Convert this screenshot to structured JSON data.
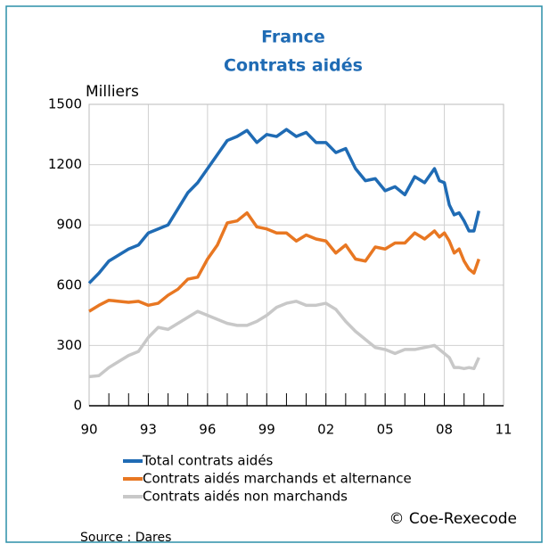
{
  "chart_data": {
    "type": "line",
    "title": "France",
    "subtitle": "Contrats aidés",
    "y_label": "Milliers",
    "source": "Source : Dares",
    "credit": "© Coe-Rexecode",
    "x": [
      1990,
      1990.5,
      1991,
      1991.5,
      1992,
      1992.5,
      1993,
      1993.5,
      1994,
      1994.5,
      1995,
      1995.5,
      1996,
      1996.5,
      1997,
      1997.5,
      1998,
      1998.5,
      1999,
      1999.5,
      2000,
      2000.5,
      2001,
      2001.5,
      2002,
      2002.5,
      2003,
      2003.5,
      2004,
      2004.5,
      2005,
      2005.5,
      2006,
      2006.5,
      2007,
      2007.5,
      2007.75,
      2008,
      2008.25,
      2008.5,
      2008.75,
      2009,
      2009.25,
      2009.5,
      2009.75
    ],
    "series": [
      {
        "name": "Total contrats aidés",
        "color": "#1f6bb4",
        "values": [
          610,
          660,
          720,
          750,
          780,
          800,
          860,
          880,
          900,
          980,
          1060,
          1110,
          1180,
          1250,
          1320,
          1340,
          1370,
          1310,
          1350,
          1340,
          1375,
          1340,
          1360,
          1310,
          1310,
          1260,
          1280,
          1180,
          1120,
          1130,
          1070,
          1090,
          1050,
          1140,
          1110,
          1180,
          1120,
          1110,
          1000,
          950,
          960,
          920,
          870,
          870,
          970
        ]
      },
      {
        "name": "Contrats aidés marchands et alternance",
        "color": "#e87722",
        "values": [
          470,
          500,
          525,
          520,
          515,
          520,
          500,
          510,
          550,
          580,
          630,
          640,
          730,
          800,
          910,
          920,
          960,
          890,
          880,
          860,
          860,
          820,
          850,
          830,
          820,
          760,
          800,
          730,
          720,
          790,
          780,
          810,
          810,
          860,
          830,
          870,
          840,
          860,
          820,
          760,
          780,
          720,
          680,
          660,
          730
        ]
      },
      {
        "name": "Contrats aidés non marchands",
        "color": "#c8c8c8",
        "values": [
          145,
          150,
          190,
          220,
          250,
          270,
          340,
          390,
          380,
          410,
          440,
          470,
          450,
          430,
          410,
          400,
          400,
          420,
          450,
          490,
          510,
          520,
          500,
          500,
          510,
          480,
          420,
          370,
          330,
          290,
          280,
          260,
          280,
          280,
          290,
          300,
          280,
          260,
          240,
          190,
          190,
          185,
          190,
          185,
          240
        ]
      }
    ],
    "xlim": [
      1990,
      2011
    ],
    "xticks": [
      {
        "value": 1990,
        "label": "90"
      },
      {
        "value": 1993,
        "label": "93"
      },
      {
        "value": 1996,
        "label": "96"
      },
      {
        "value": 1999,
        "label": "99"
      },
      {
        "value": 2002,
        "label": "02"
      },
      {
        "value": 2005,
        "label": "05"
      },
      {
        "value": 2008,
        "label": "08"
      },
      {
        "value": 2011,
        "label": "11"
      }
    ],
    "ylim": [
      0,
      1500
    ],
    "yticks": [
      0,
      300,
      600,
      900,
      1200,
      1500
    ],
    "grid": true
  }
}
